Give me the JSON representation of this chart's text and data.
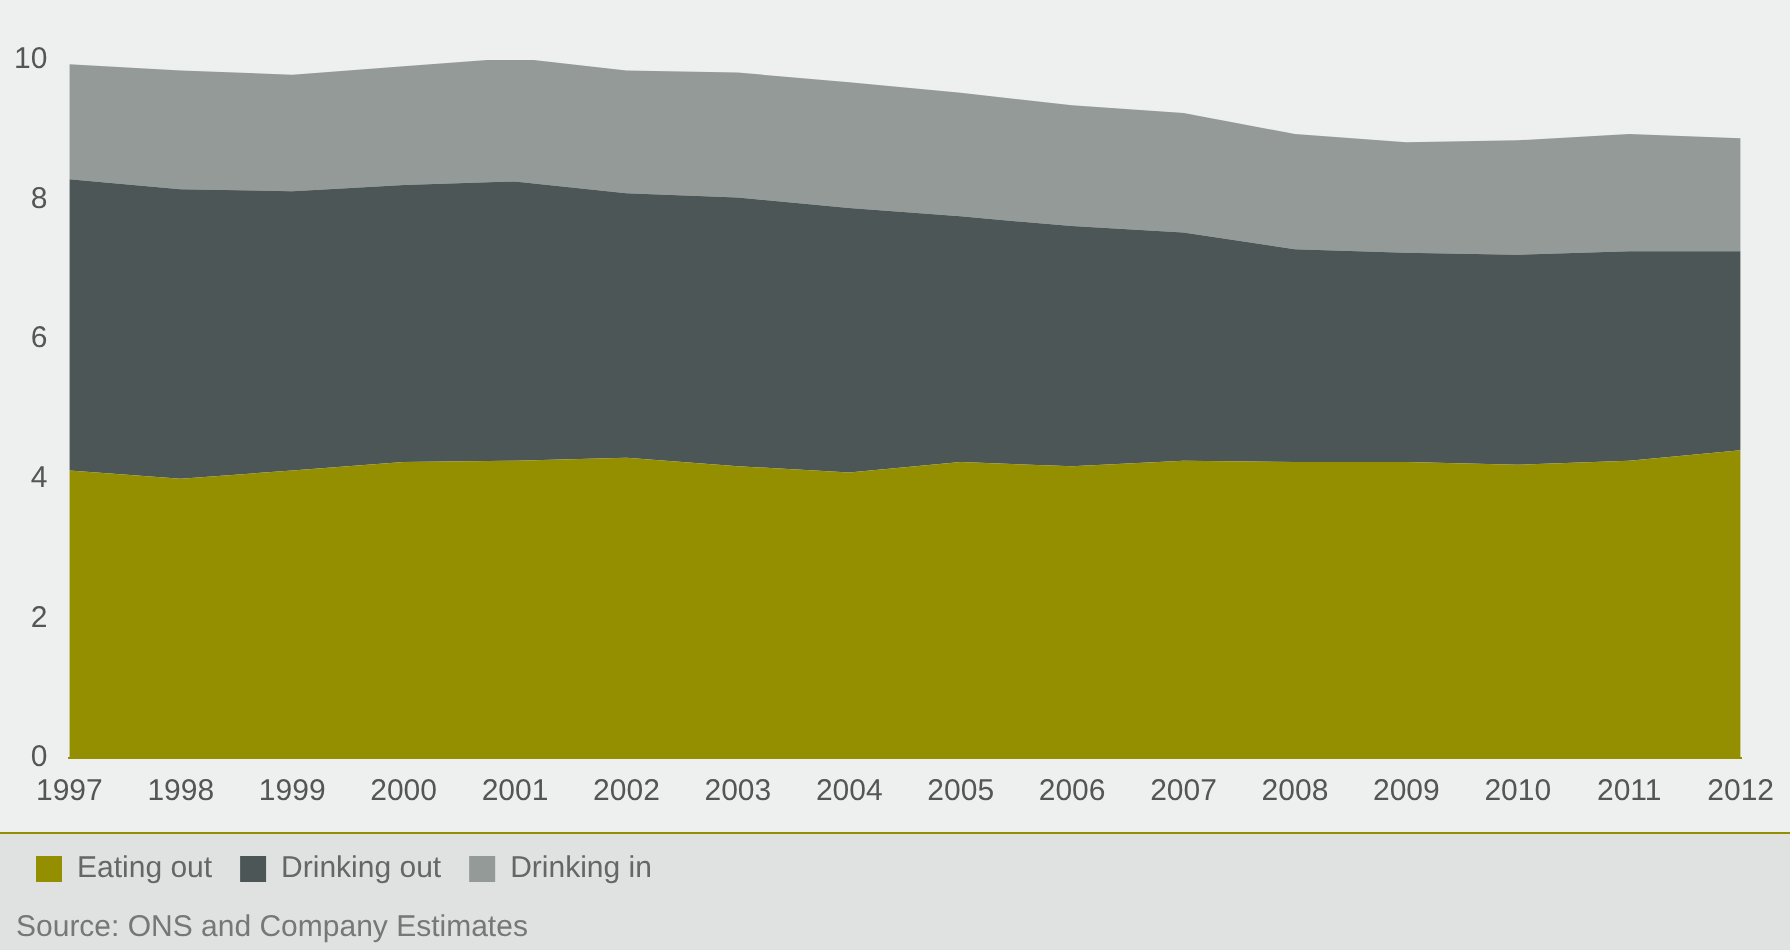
{
  "chart_data": {
    "type": "area",
    "stacked": true,
    "categories": [
      "1997",
      "1998",
      "1999",
      "2000",
      "2001",
      "2002",
      "2003",
      "2004",
      "2005",
      "2006",
      "2007",
      "2008",
      "2009",
      "2010",
      "2011",
      "2012"
    ],
    "series": [
      {
        "name": "Eating out",
        "color": "#948f00",
        "values": [
          4.12,
          4.0,
          4.12,
          4.24,
          4.26,
          4.3,
          4.18,
          4.09,
          4.24,
          4.18,
          4.26,
          4.24,
          4.24,
          4.2,
          4.26,
          4.41
        ]
      },
      {
        "name": "Drinking out",
        "color": "#4d5656",
        "values": [
          4.17,
          4.15,
          4.0,
          3.97,
          4.0,
          3.79,
          3.85,
          3.79,
          3.52,
          3.44,
          3.27,
          3.05,
          3.0,
          3.01,
          3.0,
          2.85
        ]
      },
      {
        "name": "Drinking in",
        "color": "#939a98",
        "values": [
          1.65,
          1.7,
          1.67,
          1.7,
          1.77,
          1.76,
          1.79,
          1.8,
          1.77,
          1.73,
          1.71,
          1.65,
          1.58,
          1.64,
          1.68,
          1.62
        ]
      }
    ],
    "ylim": [
      0,
      10
    ],
    "yticks": [
      0,
      2,
      4,
      6,
      8,
      10
    ],
    "grid": false,
    "legend": "bottom",
    "annotations": [
      "Source: ONS and Company Estimates"
    ]
  }
}
